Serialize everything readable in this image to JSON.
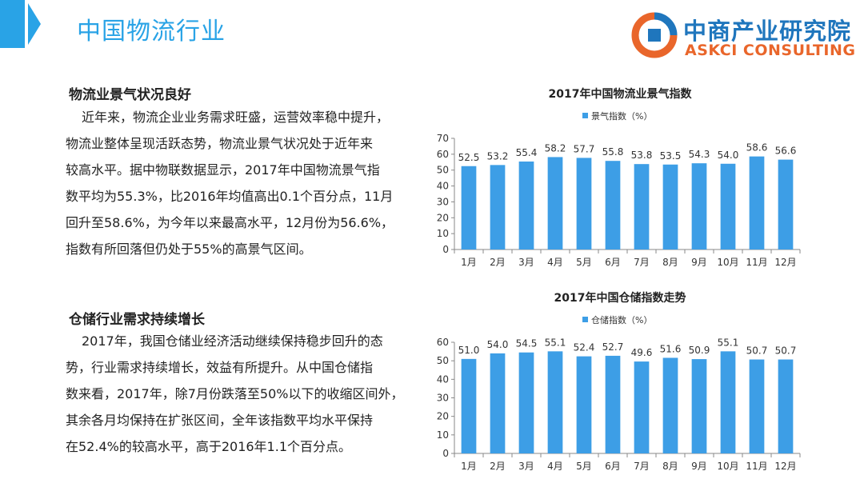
{
  "header": {
    "title": "中国物流行业",
    "logo_cn": "中商产业研究院",
    "logo_en": "ASKCI CONSULTING"
  },
  "colors": {
    "accent": "#29a3e6",
    "bar": "#3d9ee6",
    "logo_blue": "#1f76bd",
    "logo_orange": "#e9662b"
  },
  "sections": [
    {
      "heading": "物流业景气状况良好",
      "lines": [
        "近年来，物流企业业务需求旺盛，运营效率稳中提升，",
        "物流业整体呈现活跃态势，物流业景气状况处于近年来",
        "较高水平。据中物联数据显示，2017年中国物流景气指",
        "数平均为55.3%，比2016年均值高出0.1个百分点，11月",
        "回升至58.6%，为今年以来最高水平，12月份为56.6%，",
        "指数有所回落但仍处于55%的高景气区间。"
      ]
    },
    {
      "heading": "仓储行业需求持续增长",
      "lines": [
        "2017年，我国仓储业经济活动继续保持稳步回升的态",
        "势，行业需求持续增长，效益有所提升。从中国仓储指",
        "数来看，2017年，除7月份跌落至50%以下的收缩区间外，",
        "其余各月均保持在扩张区间，全年该指数平均水平保持",
        "在52.4%的较高水平，高于2016年1.1个百分点。"
      ]
    }
  ],
  "chart_data": [
    {
      "type": "bar",
      "title": "2017年中国物流业景气指数",
      "legend": "景气指数（%）",
      "legend_position": "top",
      "categories": [
        "1月",
        "2月",
        "3月",
        "4月",
        "5月",
        "6月",
        "7月",
        "8月",
        "9月",
        "10月",
        "11月",
        "12月"
      ],
      "values": [
        52.5,
        53.2,
        55.4,
        58.2,
        57.7,
        55.8,
        53.8,
        53.5,
        54.3,
        54.0,
        58.6,
        56.6
      ],
      "ylim": [
        0,
        70
      ],
      "yticks": [
        0,
        10,
        20,
        30,
        40,
        50,
        60,
        70
      ],
      "grid": false
    },
    {
      "type": "bar",
      "title": "2017年中国仓储指数走势",
      "legend": "仓储指数（%）",
      "legend_position": "top",
      "categories": [
        "1月",
        "2月",
        "3月",
        "4月",
        "5月",
        "6月",
        "7月",
        "8月",
        "9月",
        "10月",
        "11月",
        "12月"
      ],
      "values": [
        51.0,
        54.0,
        54.5,
        55.1,
        52.4,
        52.7,
        49.6,
        51.6,
        50.9,
        55.1,
        50.7,
        50.7
      ],
      "ylim": [
        0,
        60
      ],
      "yticks": [
        0,
        10,
        20,
        30,
        40,
        50,
        60
      ],
      "grid": false
    }
  ]
}
